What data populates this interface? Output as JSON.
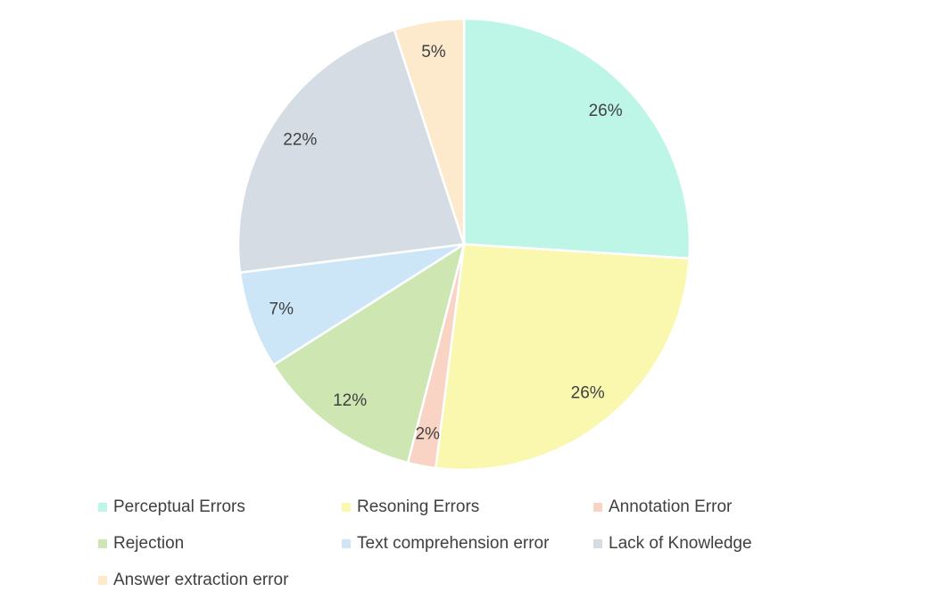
{
  "chart_data": {
    "type": "pie",
    "categories": [
      "Perceptual Errors",
      "Resoning Errors",
      "Annotation Error",
      "Rejection",
      "Text comprehension error",
      "Lack of Knowledge",
      "Answer extraction error"
    ],
    "values": [
      26,
      26,
      2,
      12,
      7,
      22,
      5
    ],
    "value_labels": [
      "26%",
      "26%",
      "2%",
      "12%",
      "7%",
      "22%",
      "5%"
    ],
    "colors": [
      "#bdf5e6",
      "#faf7ae",
      "#f9d3c3",
      "#cde6b2",
      "#cce6f7",
      "#d5dce4",
      "#fde9cc"
    ],
    "legend": "bottom"
  }
}
